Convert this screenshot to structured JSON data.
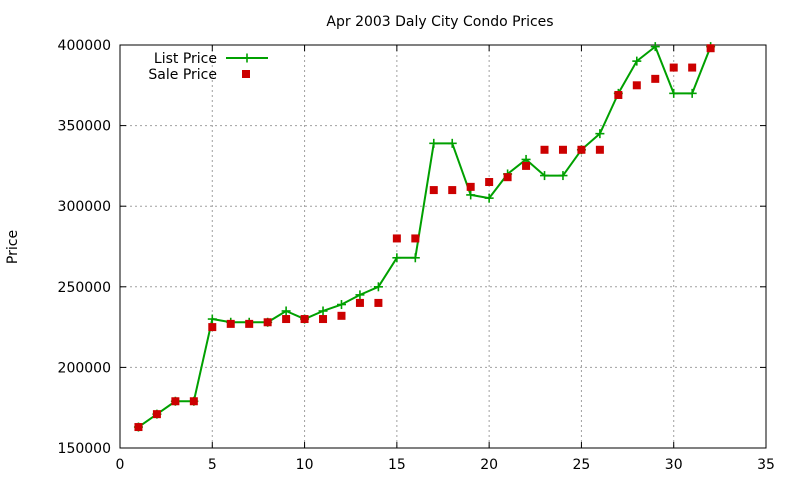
{
  "chart_data": {
    "type": "line",
    "title": "Apr 2003 Daly City Condo Prices",
    "xlabel": "",
    "ylabel": "Price",
    "xlim": [
      0,
      35
    ],
    "ylim": [
      150000,
      400000
    ],
    "x_ticks": [
      0,
      5,
      10,
      15,
      20,
      25,
      30,
      35
    ],
    "y_ticks": [
      150000,
      200000,
      250000,
      300000,
      350000,
      400000
    ],
    "grid": true,
    "legend_position": "top-left",
    "series": [
      {
        "name": "List Price",
        "style": "line+points",
        "color": "#00a000",
        "x": [
          1,
          2,
          3,
          4,
          5,
          6,
          7,
          8,
          9,
          10,
          11,
          12,
          13,
          14,
          15,
          16,
          17,
          18,
          19,
          20,
          21,
          22,
          23,
          24,
          25,
          26,
          27,
          28,
          29,
          30,
          31,
          32
        ],
        "y": [
          163000,
          171000,
          179000,
          179000,
          230000,
          228000,
          228000,
          228000,
          235000,
          230000,
          235000,
          239000,
          245000,
          250000,
          268000,
          268000,
          339000,
          339000,
          307000,
          305000,
          320000,
          329000,
          319000,
          319000,
          335000,
          345000,
          370000,
          390000,
          399000,
          370000,
          370000,
          399000
        ]
      },
      {
        "name": "Sale Price",
        "style": "points",
        "color": "#cc0000",
        "x": [
          1,
          2,
          3,
          4,
          5,
          6,
          7,
          8,
          9,
          10,
          11,
          12,
          13,
          14,
          15,
          16,
          17,
          18,
          19,
          20,
          21,
          22,
          23,
          24,
          25,
          26,
          27,
          28,
          29,
          30,
          31,
          32
        ],
        "y": [
          163000,
          171000,
          179000,
          179000,
          225000,
          227000,
          227000,
          228000,
          230000,
          230000,
          230000,
          232000,
          240000,
          240000,
          280000,
          280000,
          310000,
          310000,
          312000,
          315000,
          318000,
          325000,
          335000,
          335000,
          335000,
          335000,
          369000,
          375000,
          379000,
          386000,
          386000,
          398000
        ]
      }
    ]
  }
}
